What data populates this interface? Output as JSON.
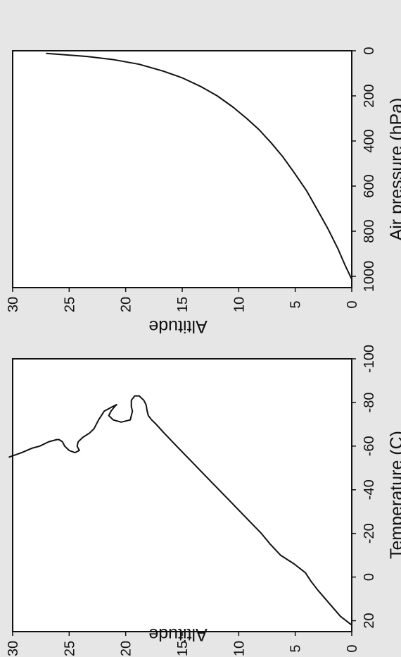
{
  "chart_data": [
    {
      "type": "line",
      "id": "temperature",
      "title": "",
      "xlabel": "Temperature (C)",
      "ylabel": "Altitude",
      "xlim": [
        -100,
        25
      ],
      "ylim": [
        0,
        30
      ],
      "xticks": [
        -100,
        -80,
        -60,
        -40,
        -20,
        0,
        20
      ],
      "yticks": [
        0,
        5,
        10,
        15,
        20,
        25,
        30
      ],
      "grid": false,
      "x": [
        22,
        18,
        12,
        6,
        2,
        -2,
        -6,
        -10,
        -15,
        -20,
        -28,
        -36,
        -44,
        -52,
        -60,
        -66,
        -70,
        -72,
        -74,
        -76,
        -79,
        -81,
        -83,
        -83,
        -81,
        -78,
        -76,
        -72,
        -71,
        -72,
        -74,
        -76,
        -78,
        -79,
        -78,
        -76,
        -72,
        -68,
        -66,
        -64,
        -62,
        -60,
        -58,
        -57,
        -58,
        -60,
        -62,
        -63,
        -63,
        -62,
        -60,
        -59,
        -57,
        -55
      ],
      "y": [
        0,
        1,
        2,
        3,
        3.6,
        4.1,
        5.1,
        6.3,
        7.2,
        8,
        9.5,
        11,
        12.5,
        14,
        15.5,
        16.6,
        17.3,
        17.7,
        18,
        18.1,
        18.2,
        18.4,
        18.8,
        19.2,
        19.5,
        19.5,
        19.4,
        19.6,
        20.4,
        21.1,
        21.5,
        21.3,
        21.0,
        20.8,
        21.2,
        21.9,
        22.4,
        22.8,
        23.2,
        23.8,
        24.2,
        24.3,
        24.1,
        24.5,
        25.0,
        25.4,
        25.6,
        25.9,
        26.1,
        26.8,
        27.6,
        28.3,
        29.2,
        30.3
      ]
    },
    {
      "type": "line",
      "id": "pressure",
      "title": "",
      "xlabel": "Air pressure (hPa)",
      "ylabel": "Altitude",
      "xlim": [
        0,
        1050
      ],
      "ylim": [
        0,
        30
      ],
      "xticks": [
        0,
        200,
        400,
        600,
        800,
        1000
      ],
      "yticks": [
        0,
        5,
        10,
        15,
        20,
        25,
        30
      ],
      "grid": false,
      "x": [
        1013,
        950,
        880,
        790,
        700,
        620,
        540,
        470,
        410,
        350,
        300,
        250,
        200,
        160,
        120,
        90,
        60,
        40,
        25,
        12
      ],
      "y": [
        0,
        0.6,
        1.2,
        2.1,
        3.1,
        4.0,
        5.1,
        6.1,
        7.1,
        8.2,
        9.3,
        10.5,
        11.9,
        13.3,
        15.0,
        16.7,
        18.8,
        21.0,
        23.5,
        27.0
      ]
    }
  ]
}
